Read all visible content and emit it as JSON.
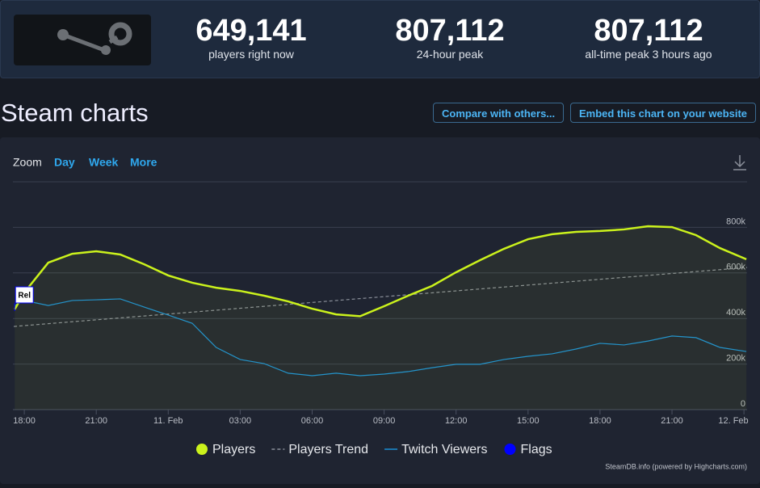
{
  "header": {
    "stats": [
      {
        "value": "649,141",
        "label": "players right now"
      },
      {
        "value": "807,112",
        "label": "24-hour peak"
      },
      {
        "value": "807,112",
        "label": "all-time peak 3 hours ago"
      }
    ]
  },
  "title": "Steam charts",
  "buttons": [
    "Compare with others...",
    "Embed this chart on your website"
  ],
  "zoom": {
    "label": "Zoom",
    "options": [
      "Day",
      "Week",
      "More"
    ]
  },
  "chart_data": {
    "type": "line",
    "xlim": [
      -0.44,
      30.13
    ],
    "xticks": [
      {
        "value": 0,
        "label": "18:00"
      },
      {
        "value": 3,
        "label": "21:00"
      },
      {
        "value": 6,
        "label": "11. Feb"
      },
      {
        "value": 9,
        "label": "03:00"
      },
      {
        "value": 12,
        "label": "06:00"
      },
      {
        "value": 15,
        "label": "09:00"
      },
      {
        "value": 18,
        "label": "12:00"
      },
      {
        "value": 21,
        "label": "15:00"
      },
      {
        "value": 24,
        "label": "18:00"
      },
      {
        "value": 27,
        "label": "21:00"
      },
      {
        "value": 30,
        "label": "12. Feb"
      }
    ],
    "ylim": [
      0,
      1000000
    ],
    "yticks": [
      0,
      {
        "value": 200000,
        "label": "200k"
      },
      {
        "value": 400000,
        "label": "400k"
      },
      {
        "value": 600000,
        "label": "600k"
      },
      {
        "value": 800000,
        "label": "800k"
      }
    ],
    "grid": true,
    "series": [
      {
        "name": "Players",
        "color": "#cbf21c",
        "x": [
          -0.4,
          0,
          1,
          2,
          3,
          4,
          5,
          6,
          7,
          8,
          9,
          10,
          11,
          12,
          13,
          14,
          15,
          16,
          17,
          18,
          19,
          20,
          21,
          22,
          23,
          24,
          25,
          26,
          27,
          28,
          29,
          30.1
        ],
        "values": [
          440000,
          514000,
          645000,
          684000,
          695000,
          681000,
          638000,
          589000,
          557000,
          535000,
          521000,
          500000,
          475000,
          443000,
          418000,
          410000,
          454000,
          500000,
          543000,
          603000,
          656000,
          706000,
          748000,
          770000,
          780000,
          784000,
          791000,
          805000,
          801000,
          766000,
          709000,
          660000
        ]
      },
      {
        "name": "Players Trend",
        "color": "#8a8f99",
        "x": [
          -0.44,
          30.13
        ],
        "values": [
          365000,
          624000
        ]
      },
      {
        "name": "Twitch Viewers",
        "color": "#1a8fd6",
        "x": [
          -0.4,
          0,
          1,
          2,
          3,
          4,
          5,
          6,
          7,
          8,
          9,
          10,
          11,
          12,
          13,
          14,
          15,
          16,
          17,
          18,
          19,
          20,
          21,
          22,
          23,
          24,
          25,
          26,
          27,
          28,
          29,
          30.1
        ],
        "values": [
          457000,
          479000,
          457000,
          479000,
          482000,
          486000,
          450000,
          415000,
          379000,
          273000,
          220000,
          202000,
          160000,
          149000,
          160000,
          149000,
          156000,
          167000,
          184000,
          199000,
          199000,
          220000,
          234000,
          245000,
          266000,
          291000,
          284000,
          301000,
          323000,
          316000,
          273000,
          255000
        ]
      }
    ],
    "flags": {
      "name": "Flags",
      "color": "#0000ff",
      "items": [
        {
          "x": -0.4,
          "label": "Rel"
        }
      ]
    },
    "credits": "SteamDB.info (powered by Highcharts.com)"
  }
}
